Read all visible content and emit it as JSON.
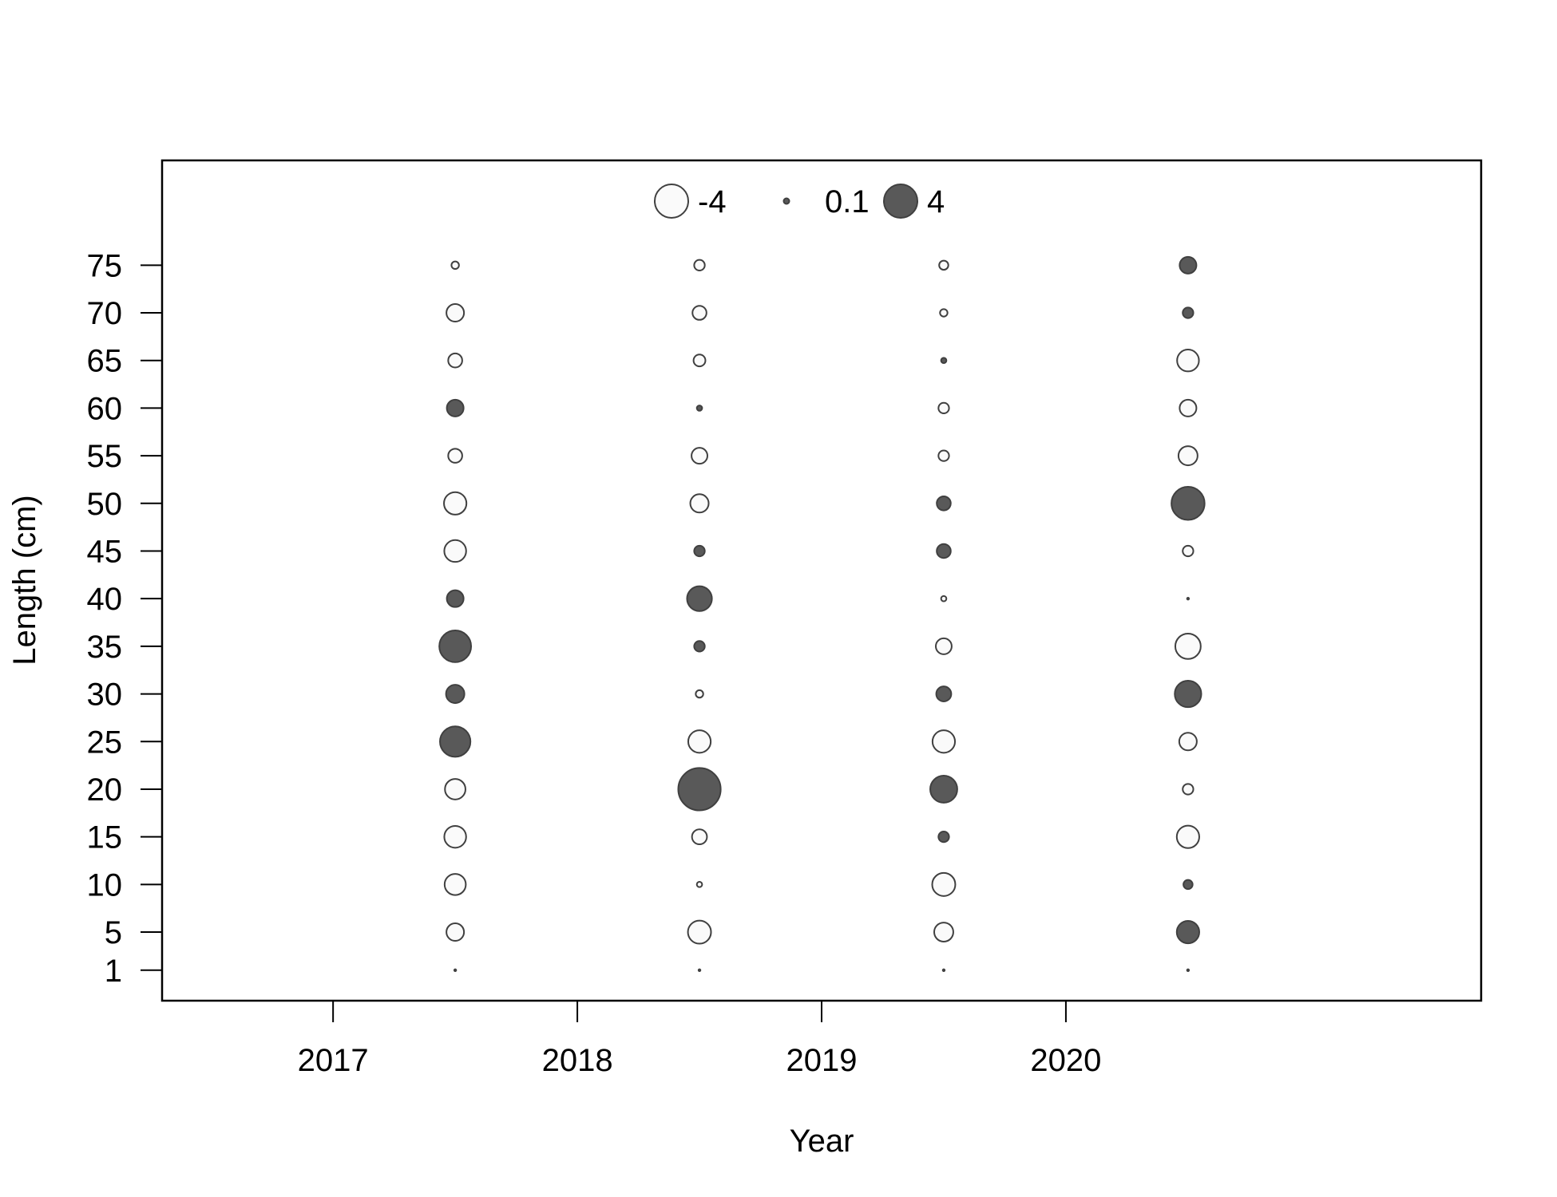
{
  "chart_data": {
    "type": "scatter",
    "subtype": "bubble",
    "title": "",
    "xlabel": "Year",
    "ylabel": "Length (cm)",
    "x_ticks": [
      2017,
      2018,
      2019,
      2020
    ],
    "y_ticks": [
      1,
      5,
      10,
      15,
      20,
      25,
      30,
      35,
      40,
      45,
      50,
      55,
      60,
      65,
      70,
      75
    ],
    "xlim": [
      2016.3,
      2021.7
    ],
    "ylim": [
      -2.2,
      86
    ],
    "grid": false,
    "legend": {
      "placement": "top-center",
      "entries": [
        {
          "label": "-4",
          "value": -4
        },
        {
          "label": "0.1",
          "value": 0.1
        },
        {
          "label": "4",
          "value": 4
        }
      ]
    },
    "colors": {
      "positive": "#595959",
      "negative": "#fafafa",
      "outline": "#404040"
    },
    "lengths": [
      1,
      5,
      10,
      15,
      20,
      25,
      30,
      35,
      40,
      45,
      50,
      55,
      60,
      65,
      70,
      75
    ],
    "series": [
      {
        "x": 2017.5,
        "residuals": [
          0.0,
          -1.1,
          -1.6,
          -1.7,
          -1.5,
          3.3,
          1.2,
          3.6,
          1.0,
          -1.7,
          -1.8,
          -0.7,
          1.0,
          -0.7,
          -1.1,
          -0.2
        ]
      },
      {
        "x": 2018.5,
        "residuals": [
          0.0,
          -1.9,
          -0.1,
          -0.8,
          6.4,
          -1.8,
          -0.2,
          0.4,
          2.2,
          0.4,
          -1.2,
          -0.9,
          0.1,
          -0.5,
          -0.7,
          -0.4
        ]
      },
      {
        "x": 2019.5,
        "residuals": [
          0.0,
          -1.3,
          -1.9,
          0.4,
          2.6,
          -1.8,
          0.8,
          -0.9,
          -0.1,
          0.7,
          0.7,
          -0.4,
          -0.4,
          0.1,
          -0.2,
          -0.3
        ]
      },
      {
        "x": 2020.5,
        "residuals": [
          0.0,
          1.8,
          0.3,
          -1.8,
          -0.4,
          -1.1,
          2.5,
          -2.3,
          0.0,
          -0.4,
          3.9,
          -1.3,
          -1.0,
          -1.7,
          0.4,
          1.0
        ]
      }
    ]
  }
}
